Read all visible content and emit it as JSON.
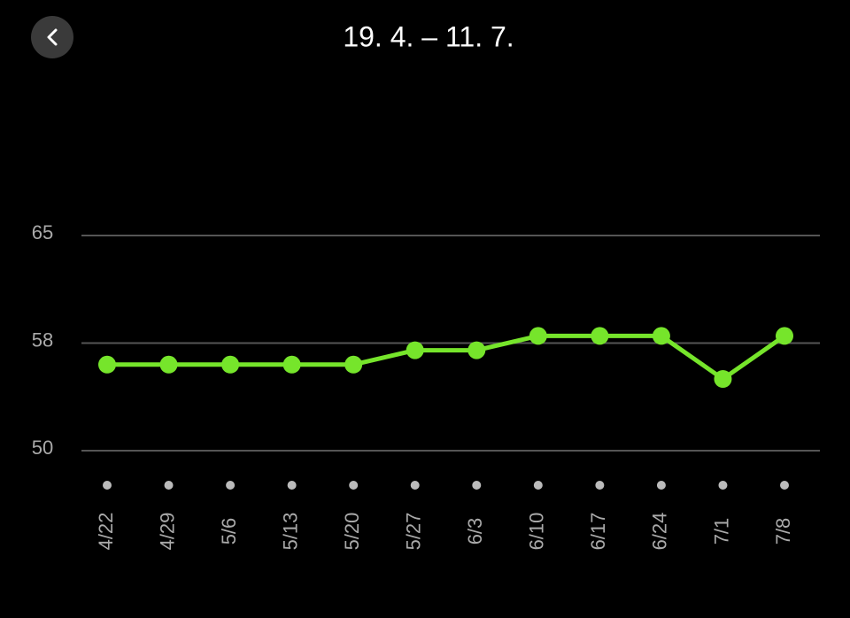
{
  "header": {
    "title": "19. 4. – 11. 7."
  },
  "chart_data": {
    "type": "line",
    "categories": [
      "4/22",
      "4/29",
      "5/6",
      "5/13",
      "5/20",
      "5/27",
      "6/3",
      "6/10",
      "6/17",
      "6/24",
      "7/1",
      "7/8"
    ],
    "values": [
      56,
      56,
      56,
      56,
      56,
      57,
      57,
      58,
      58,
      58,
      55,
      58
    ],
    "color": "#76e52b",
    "ylim": [
      50,
      65
    ],
    "yticks": [
      50,
      {
        "value": 57.5,
        "label": "58"
      },
      65
    ],
    "grid": true
  }
}
